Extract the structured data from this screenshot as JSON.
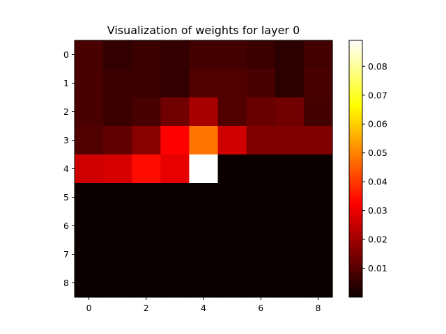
{
  "chart_data": {
    "type": "heatmap",
    "title": "Visualization of weights for layer 0",
    "xlabel": "",
    "ylabel": "",
    "colormap": "hot",
    "rows": 9,
    "cols": 9,
    "x_ticks": [
      0,
      2,
      4,
      6,
      8
    ],
    "y_ticks": [
      0,
      1,
      2,
      3,
      4,
      5,
      6,
      7,
      8
    ],
    "color_range": [
      0.0,
      0.089
    ],
    "colorbar_ticks": [
      0.01,
      0.02,
      0.03,
      0.04,
      0.05,
      0.06,
      0.07,
      0.08
    ],
    "colorbar_tick_labels": [
      "0.01",
      "0.02",
      "0.03",
      "0.04",
      "0.05",
      "0.06",
      "0.07",
      "0.08"
    ],
    "values": [
      [
        0.008,
        0.005,
        0.006,
        0.005,
        0.007,
        0.007,
        0.006,
        0.004,
        0.007
      ],
      [
        0.008,
        0.006,
        0.006,
        0.005,
        0.009,
        0.009,
        0.008,
        0.004,
        0.008
      ],
      [
        0.008,
        0.006,
        0.008,
        0.013,
        0.02,
        0.009,
        0.012,
        0.013,
        0.007
      ],
      [
        0.009,
        0.011,
        0.016,
        0.032,
        0.048,
        0.025,
        0.015,
        0.015,
        0.015
      ],
      [
        0.025,
        0.026,
        0.034,
        0.028,
        0.089,
        0.0,
        0.0,
        0.0,
        0.0
      ],
      [
        0.0,
        0.0,
        0.0,
        0.0,
        0.0,
        0.0,
        0.0,
        0.0,
        0.0
      ],
      [
        0.0,
        0.0,
        0.0,
        0.0,
        0.0,
        0.0,
        0.0,
        0.0,
        0.0
      ],
      [
        0.0,
        0.0,
        0.0,
        0.0,
        0.0,
        0.0,
        0.0,
        0.0,
        0.0
      ],
      [
        0.0,
        0.0,
        0.0,
        0.0,
        0.0,
        0.0,
        0.0,
        0.0,
        0.0
      ]
    ]
  }
}
